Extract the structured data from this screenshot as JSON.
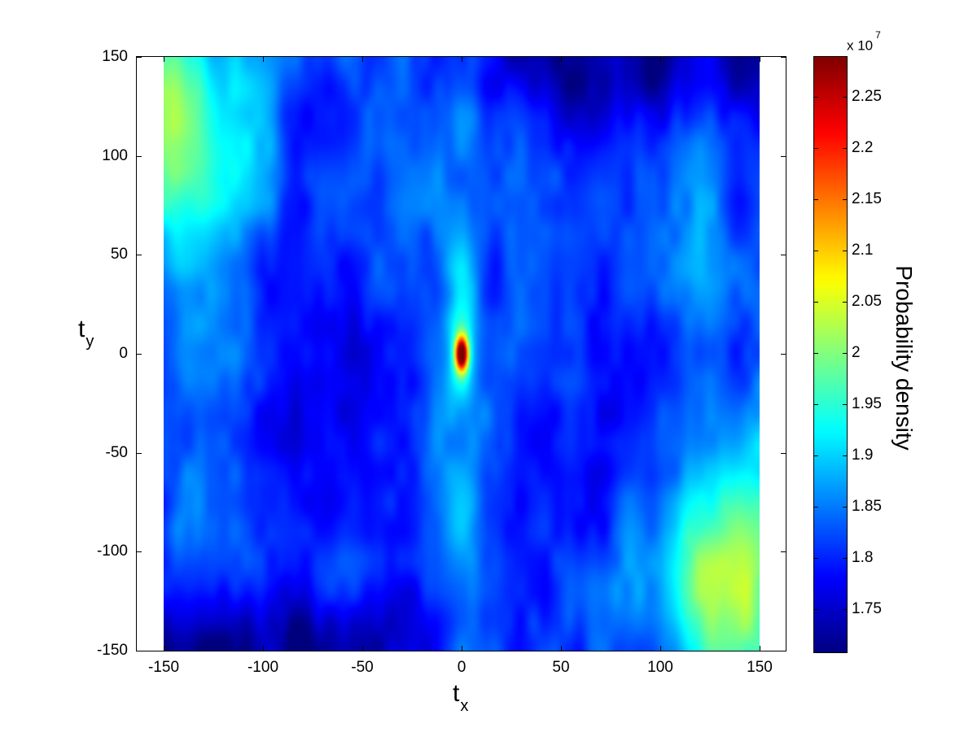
{
  "chart_data": {
    "type": "heatmap",
    "title": "",
    "xlabel": "t_x",
    "xlabel_main": "t",
    "xlabel_sub": "x",
    "ylabel": "t_y",
    "ylabel_main": "t",
    "ylabel_sub": "y",
    "xlim": [
      -163,
      163
    ],
    "ylim": [
      -150,
      150
    ],
    "data_extent": {
      "x": [
        -150,
        150
      ],
      "y": [
        -150,
        150
      ]
    },
    "x_ticks": [
      -150,
      -100,
      -50,
      0,
      50,
      100,
      150
    ],
    "x_tick_labels": [
      "-150",
      "-100",
      "-50",
      "0",
      "50",
      "100",
      "150"
    ],
    "y_ticks": [
      150,
      100,
      50,
      0,
      -50,
      -100,
      -150
    ],
    "y_tick_labels": [
      "150",
      "100",
      "50",
      "0",
      "-50",
      "-100",
      "-150"
    ],
    "grid": false,
    "colormap": "jet",
    "colorbar": {
      "label": "Probability density",
      "multiplier": "x 10",
      "exponent": "7",
      "range": [
        1.707,
        2.29
      ],
      "ticks": [
        2.25,
        2.2,
        2.15,
        2.1,
        2.05,
        2.0,
        1.95,
        1.9,
        1.85,
        1.8,
        1.75
      ],
      "tick_labels": [
        "2.25",
        "2.2",
        "2.15",
        "2.1",
        "2.05",
        "2",
        "1.95",
        "1.9",
        "1.85",
        "1.8",
        "1.75"
      ]
    },
    "features": [
      {
        "name": "central peak",
        "x": 0,
        "y": 0,
        "value": 2.29,
        "shape": "narrow vertical ellipse"
      },
      {
        "name": "vertical ridge",
        "x": 0,
        "value": 1.9,
        "description": "light-blue stripe along t_x = 0"
      },
      {
        "name": "upper-left high region",
        "x": -140,
        "y": 115,
        "value": 2.02
      },
      {
        "name": "lower-right high region",
        "x": 140,
        "y": -115,
        "value": 2.02
      },
      {
        "name": "top-right low region",
        "x": 120,
        "y": 145,
        "value": 1.72
      },
      {
        "name": "bottom-left low region",
        "x": -130,
        "y": -145,
        "value": 1.72
      },
      {
        "name": "right ridge",
        "x": 115,
        "value": 1.88
      }
    ],
    "background_value": 1.82
  }
}
